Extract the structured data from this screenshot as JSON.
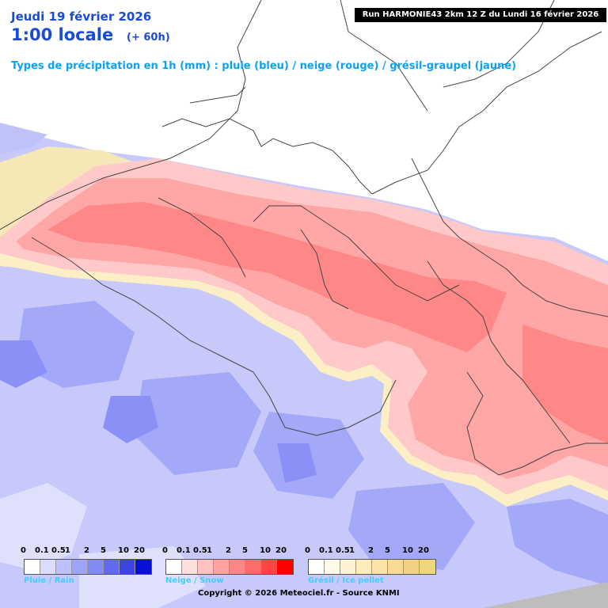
{
  "header": {
    "date": "Jeudi 19 février 2026",
    "time": "1:00 locale",
    "lead": "(+ 60h)",
    "subtitle": "Types de précipitation en 1h (mm) : pluie (bleu) / neige (rouge) / grésil-graupel (jaune)",
    "run": "Run HARMONIE43 2km 12 Z du Lundi 16 février 2026"
  },
  "legends": [
    {
      "label": "Pluie / Rain",
      "ticks": [
        "0",
        "0.1",
        "0.5",
        "1",
        "2",
        "5",
        "10",
        "20"
      ],
      "colors": [
        "#ffffff",
        "#d9dcff",
        "#bcc0ff",
        "#9fa4fb",
        "#8189f6",
        "#6169f0",
        "#3d44e4",
        "#0a0fd4"
      ]
    },
    {
      "label": "Neige / Snow",
      "ticks": [
        "0",
        "0.1",
        "0.5",
        "1",
        "2",
        "5",
        "10",
        "20"
      ],
      "colors": [
        "#ffffff",
        "#ffdede",
        "#ffc2c2",
        "#ffa2a2",
        "#ff8686",
        "#ff6a6a",
        "#ff4444",
        "#ff0000"
      ]
    },
    {
      "label": "Grésil / Ice pellet",
      "ticks": [
        "0",
        "0.1",
        "0.5",
        "1",
        "2",
        "5",
        "10",
        "20"
      ],
      "colors": [
        "#ffffff",
        "#fffaea",
        "#fff2d4",
        "#ffeabb",
        "#fde3a8",
        "#f9da95",
        "#f3d182",
        "#eed77a"
      ]
    }
  ],
  "copyright": "Copyright © 2026 Meteociel.fr - Source KNMI",
  "colors": {
    "title_blue": "#1a4bd6",
    "subtitle_cyan": "#10a0f0",
    "legend_label": "#3fd0ff"
  }
}
